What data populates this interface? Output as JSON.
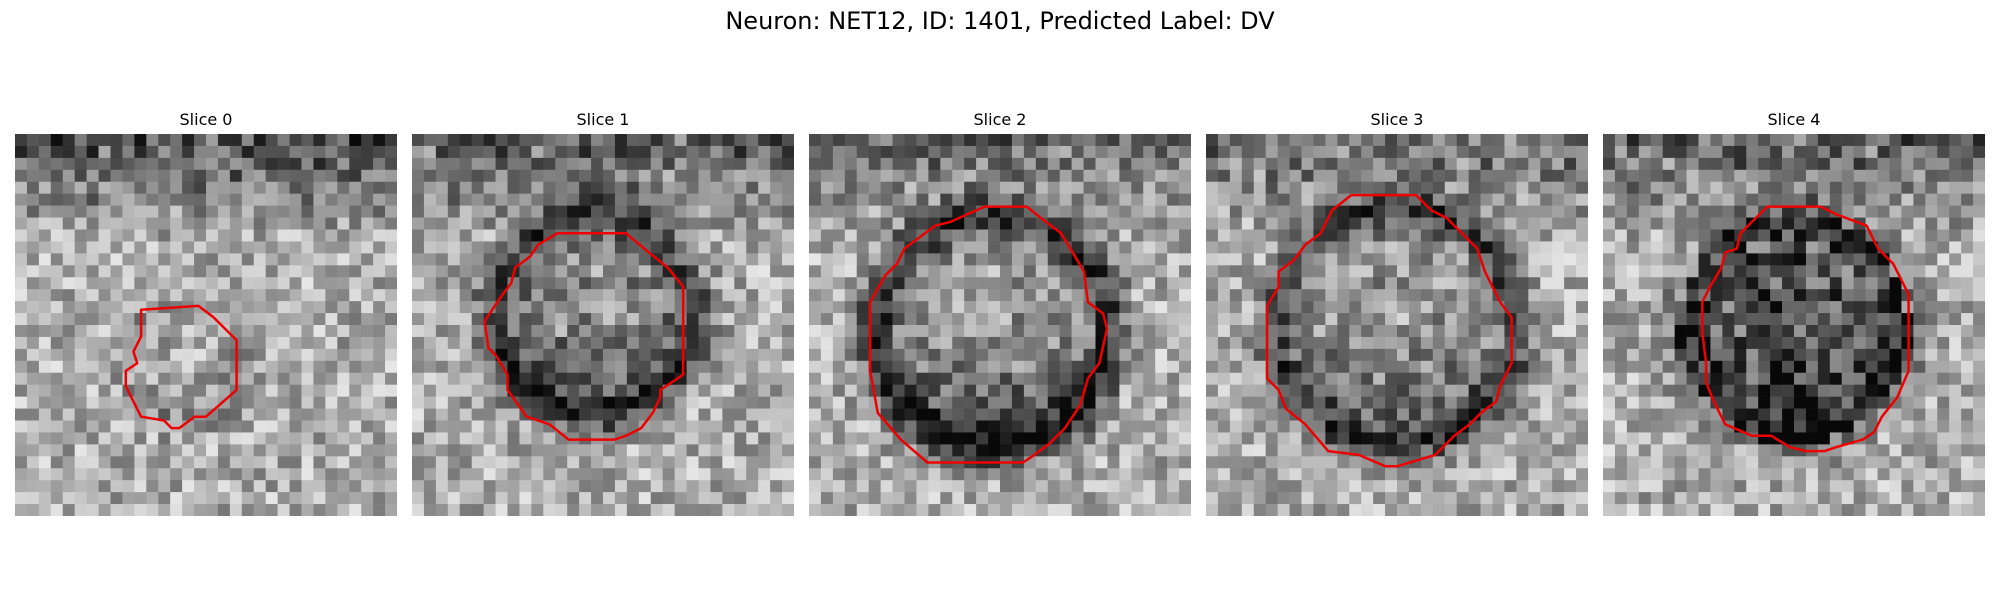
{
  "figure": {
    "title": "Neuron: NET12, ID: 1401, Predicted Label: DV"
  },
  "panels": [
    {
      "title": "Slice 0"
    },
    {
      "title": "Slice 1"
    },
    {
      "title": "Slice 2"
    },
    {
      "title": "Slice 3"
    },
    {
      "title": "Slice 4"
    }
  ],
  "colors": {
    "contour": "#ee0000",
    "background": "#ffffff"
  }
}
